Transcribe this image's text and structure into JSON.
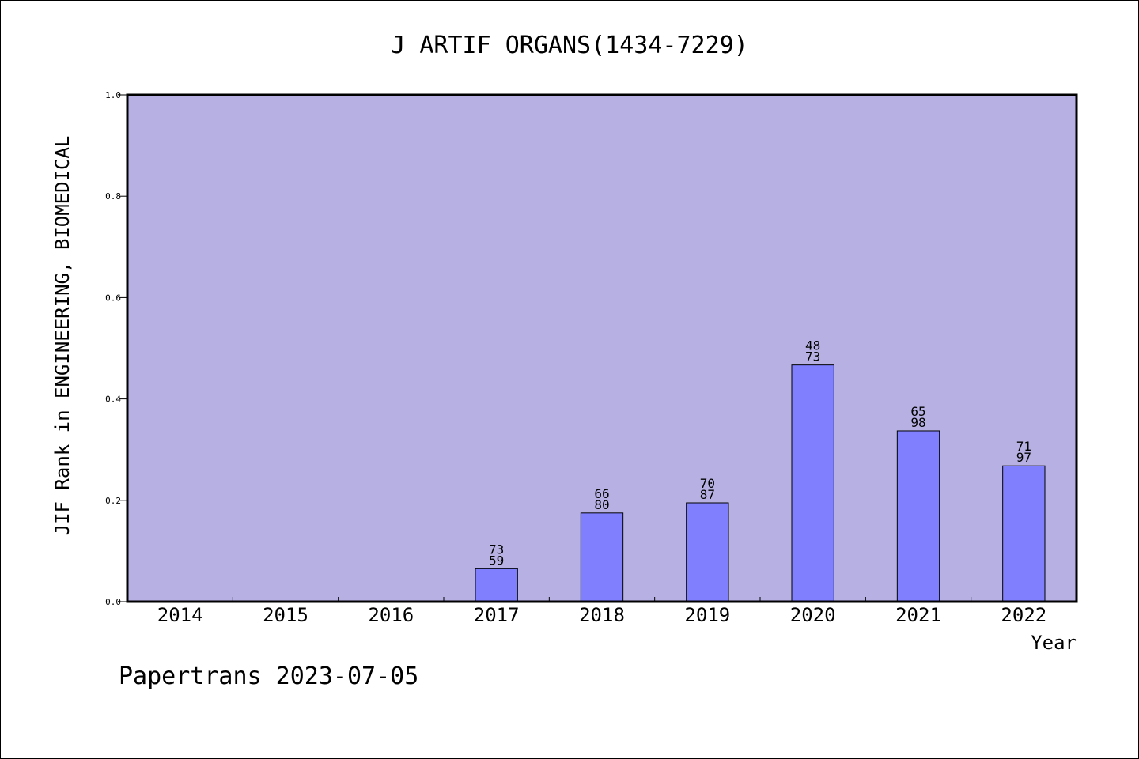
{
  "chart_data": {
    "type": "bar",
    "title": "J ARTIF ORGANS(1434-7229)",
    "xlabel": "Year",
    "ylabel": "JIF Rank in ENGINEERING, BIOMEDICAL",
    "ylim": [
      0,
      1.0
    ],
    "yticks": [
      "0.0",
      "0.2",
      "0.4",
      "0.6",
      "0.8",
      "1.0"
    ],
    "categories": [
      "2014",
      "2015",
      "2016",
      "2017",
      "2018",
      "2019",
      "2020",
      "2021",
      "2022"
    ],
    "values": [
      null,
      null,
      null,
      0.065,
      0.175,
      0.195,
      0.467,
      0.337,
      0.268
    ],
    "labels": [
      null,
      null,
      null,
      {
        "top": "73",
        "bottom": "59"
      },
      {
        "top": "66",
        "bottom": "80"
      },
      {
        "top": "70",
        "bottom": "87"
      },
      {
        "top": "48",
        "bottom": "73"
      },
      {
        "top": "65",
        "bottom": "98"
      },
      {
        "top": "71",
        "bottom": "97"
      }
    ],
    "plot_bg_color": "#b7b1e3",
    "bar_color": "#8080ff",
    "grid": false,
    "legend": "none"
  },
  "footer": "Papertrans 2023-07-05"
}
